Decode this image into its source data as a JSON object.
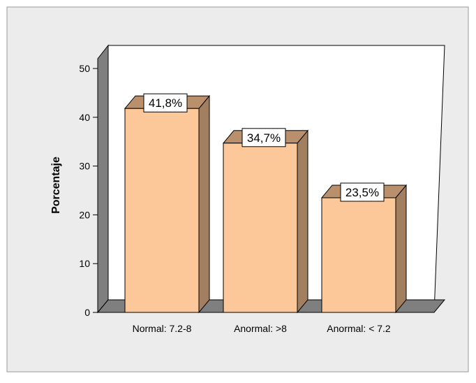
{
  "chart_data": {
    "type": "bar",
    "categories": [
      "Normal: 7.2-8",
      "Anormal: >8",
      "Anormal: < 7.2"
    ],
    "values": [
      41.8,
      34.7,
      23.5
    ],
    "data_labels": [
      "41,8%",
      "34,7%",
      "23,5%"
    ],
    "title": "",
    "xlabel": "",
    "ylabel": "Porcentaje",
    "ylim": [
      0,
      50
    ],
    "yticks": [
      0,
      10,
      20,
      30,
      40,
      50
    ],
    "ytick_labels": [
      "0",
      "10",
      "20",
      "30",
      "40",
      "50"
    ],
    "grid": false,
    "legend": "none",
    "style": "3d"
  },
  "colors": {
    "background": "#ececec",
    "plot_area": "#ffffff",
    "wall": "#7f7f7f",
    "bar_front": "#fcc89a",
    "bar_side": "#a27f60",
    "bar_top": "#b9906b",
    "outline": "#000000"
  }
}
